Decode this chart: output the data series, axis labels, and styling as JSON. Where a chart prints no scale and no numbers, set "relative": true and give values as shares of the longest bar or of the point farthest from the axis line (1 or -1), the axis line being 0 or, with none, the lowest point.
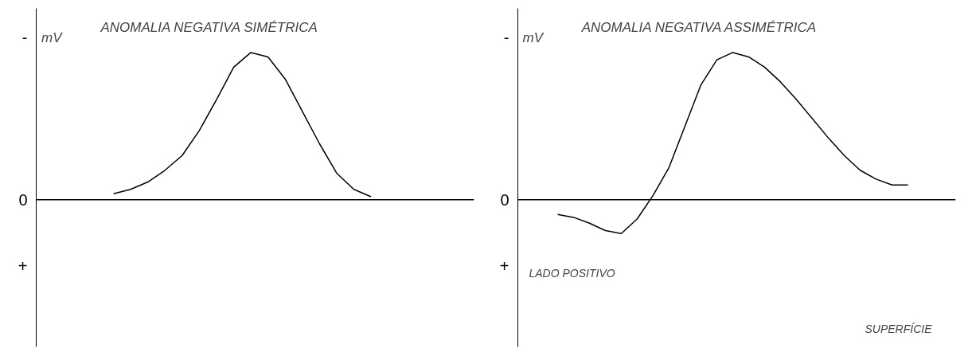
{
  "chart_data": [
    {
      "type": "line",
      "title": "ANOMALIA NEGATIVA SIMÉTRICA",
      "ylabel": "mV",
      "relative": true,
      "color": "#000000",
      "categories": [
        null,
        null,
        null,
        null,
        null,
        null,
        null,
        null,
        null,
        null,
        null,
        null,
        null,
        null,
        null,
        null,
        null,
        null,
        null,
        null,
        null,
        null,
        null,
        null,
        null
      ],
      "values": [
        null,
        null,
        null,
        null,
        0.04,
        0.07,
        0.12,
        0.2,
        0.3,
        0.47,
        0.68,
        0.9,
        1.0,
        0.97,
        0.82,
        0.6,
        0.38,
        0.18,
        0.07,
        0.02,
        null,
        null,
        null,
        null,
        null
      ],
      "ref_lines": [
        {
          "axis": "y",
          "value": 0,
          "label": "0"
        }
      ],
      "annotations": [
        "-",
        "+"
      ]
    },
    {
      "type": "line",
      "title": "ANOMALIA NEGATIVA ASSIMÉTRICA",
      "ylabel": "mV",
      "relative": true,
      "color": "#000000",
      "categories": [
        null,
        null,
        null,
        null,
        null,
        null,
        null,
        null,
        null,
        null,
        null,
        null,
        null,
        null,
        null,
        null,
        null,
        null,
        null,
        null,
        null,
        null,
        null,
        null,
        null,
        null,
        null
      ],
      "values": [
        null,
        null,
        -0.1,
        -0.12,
        -0.16,
        -0.21,
        -0.23,
        -0.13,
        0.03,
        0.22,
        0.5,
        0.78,
        0.95,
        1.0,
        0.97,
        0.9,
        0.8,
        0.68,
        0.55,
        0.42,
        0.3,
        0.2,
        0.14,
        0.1,
        0.1,
        null,
        null
      ],
      "ref_lines": [
        {
          "axis": "y",
          "value": 0,
          "label": "0"
        }
      ],
      "annotations": [
        "-",
        "+",
        "LADO POSITIVO",
        "SUPERFÍCIE"
      ]
    }
  ]
}
